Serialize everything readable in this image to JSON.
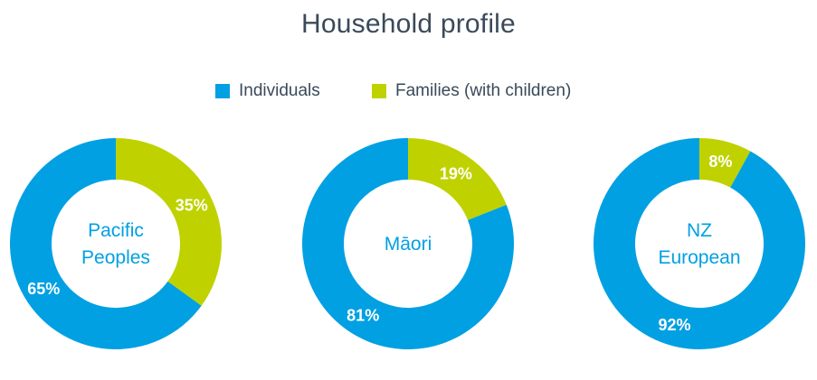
{
  "chart_data": {
    "type": "pie",
    "title": "Household profile",
    "legend_position": "top",
    "series_names": [
      "Individuals",
      "Families (with children)"
    ],
    "colors": {
      "individuals": "#00a0e3",
      "families": "#bfd200",
      "center_text": "#00a0e3",
      "title_text": "#3a4a5a"
    },
    "charts": [
      {
        "name": "Pacific Peoples",
        "name_lines": [
          "Pacific",
          "Peoples"
        ],
        "values": {
          "Individuals": 65,
          "Families (with children)": 35
        },
        "labels": {
          "Individuals": "65%",
          "Families (with children)": "35%"
        }
      },
      {
        "name": "Māori",
        "name_lines": [
          "Māori"
        ],
        "values": {
          "Individuals": 81,
          "Families (with children)": 19
        },
        "labels": {
          "Individuals": "81%",
          "Families (with children)": "19%"
        }
      },
      {
        "name": "NZ European",
        "name_lines": [
          "NZ",
          "European"
        ],
        "values": {
          "Individuals": 92,
          "Families (with children)": 8
        },
        "labels": {
          "Individuals": "92%",
          "Families (with children)": "8%"
        }
      }
    ]
  }
}
